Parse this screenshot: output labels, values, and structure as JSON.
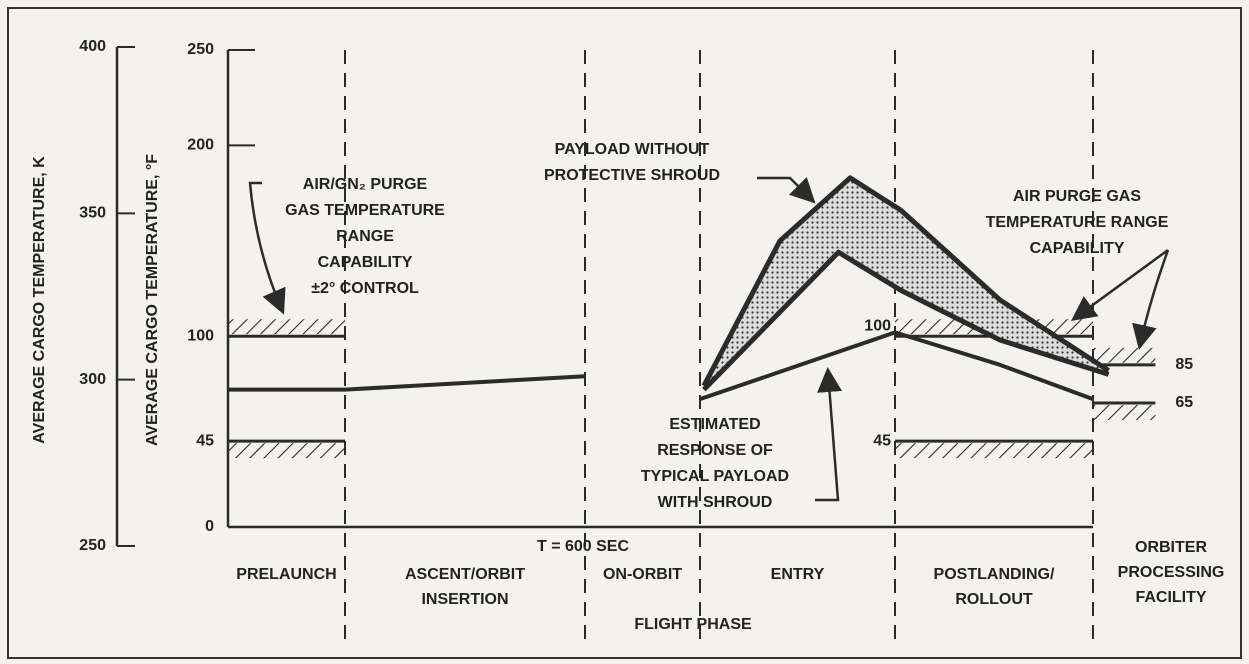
{
  "chart_data": {
    "type": "line",
    "ylabel": "AVERAGE CARGO TEMPERATURE, °F",
    "y2label": "AVERAGE CARGO TEMPERATURE, K",
    "xlabel": "FLIGHT PHASE",
    "categories": [
      [
        "PRELAUNCH"
      ],
      [
        "ASCENT/ORBIT",
        "INSERTION"
      ],
      [
        "ON-ORBIT"
      ],
      [
        "ENTRY"
      ],
      [
        "POSTLANDING/",
        "ROLLOUT"
      ],
      [
        "ORBITER",
        "PROCESSING",
        "FACILITY"
      ]
    ],
    "ylim": [
      0,
      250
    ],
    "yticks": [
      0,
      45,
      100,
      200,
      250
    ],
    "y2lim": [
      250,
      400
    ],
    "y2ticks": [
      250,
      300,
      350,
      400
    ],
    "color": "#2b2b2b",
    "series": [
      {
        "x": [
          0,
          1,
          2
        ],
        "values": [
          72,
          72,
          79
        ]
      },
      {
        "x": [
          3.0,
          4.0,
          4.53,
          5.0
        ],
        "values": [
          67,
          102,
          85,
          67
        ]
      }
    ],
    "band": {
      "upper": {
        "x": [
          3.02,
          3.41,
          3.77,
          4.03,
          4.53,
          5.1
        ],
        "values": [
          74,
          150,
          183,
          166,
          119,
          82
        ]
      },
      "lower": {
        "x": [
          3.02,
          3.71,
          4.03,
          4.53,
          5.1
        ],
        "values": [
          72,
          144,
          124,
          98,
          80
        ]
      },
      "fill": "dots"
    },
    "ranges": [
      {
        "x": [
          0,
          1
        ],
        "low": 45,
        "high": 100,
        "labeled": false
      },
      {
        "x": [
          4,
          5
        ],
        "low": 45,
        "high": 100,
        "labeled": true
      },
      {
        "x": [
          5,
          5.4
        ],
        "low": 65,
        "high": 85,
        "labeled": true
      }
    ],
    "annotations": [
      {
        "text": [
          "AIR/GN₂ PURGE",
          "GAS TEMPERATURE",
          "RANGE",
          "CAPABILITY",
          "±2° CONTROL"
        ]
      },
      {
        "text": [
          "PAYLOAD WITHOUT",
          "PROTECTIVE SHROUD"
        ]
      },
      {
        "text": [
          "AIR PURGE GAS",
          "TEMPERATURE RANGE",
          "CAPABILITY"
        ]
      },
      {
        "text": [
          "ESTIMATED",
          "RESPONSE OF",
          "TYPICAL PAYLOAD",
          "WITH SHROUD"
        ]
      },
      {
        "text": [
          "T = 600 SEC"
        ]
      }
    ]
  }
}
